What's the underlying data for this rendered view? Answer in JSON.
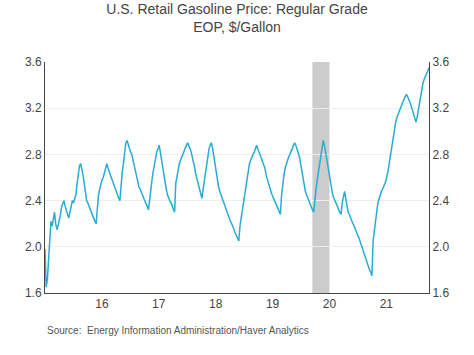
{
  "chart_data": {
    "type": "line",
    "title": "U.S. Retail Gasoline Price: Regular Grade",
    "subtitle": "EOP, $/Gallon",
    "annotations": [
      "Source:  Energy Information Administration/Haver Analytics"
    ],
    "color": "#29ABD4",
    "x": [
      15.0,
      15.0209,
      15.0418,
      15.0627,
      15.0836,
      15.1045,
      15.1254,
      15.1463,
      15.1672,
      15.1881,
      15.209,
      15.2299,
      15.2508,
      15.2717,
      15.2926,
      15.3135,
      15.3344,
      15.3553,
      15.3762,
      15.3971,
      15.418,
      15.4389,
      15.4598,
      15.4807,
      15.5015,
      15.5224,
      15.5433,
      15.5642,
      15.5851,
      15.606,
      15.6269,
      15.6478,
      15.6687,
      15.6896,
      15.7105,
      15.7314,
      15.7523,
      15.7732,
      15.7941,
      15.815,
      15.8359,
      15.8568,
      15.8777,
      15.8986,
      15.9195,
      15.9404,
      15.9613,
      15.9822,
      16.0031,
      16.024,
      16.0449,
      16.0658,
      16.0867,
      16.1076,
      16.1285,
      16.1494,
      16.1703,
      16.1912,
      16.2121,
      16.233,
      16.2539,
      16.2748,
      16.2957,
      16.3166,
      16.3375,
      16.3584,
      16.3793,
      16.4002,
      16.4211,
      16.442,
      16.4628,
      16.4837,
      16.5046,
      16.5255,
      16.5464,
      16.5673,
      16.5882,
      16.6091,
      16.63,
      16.6509,
      16.6718,
      16.6927,
      16.7136,
      16.7345,
      16.7554,
      16.7763,
      16.7972,
      16.8181,
      16.839,
      16.8599,
      16.8808,
      16.9017,
      16.9226,
      16.9435,
      16.9644,
      16.9853,
      17.0062,
      17.0271,
      17.048,
      17.0689,
      17.0898,
      17.1107,
      17.1316,
      17.1525,
      17.1734,
      17.1943,
      17.2152,
      17.2361,
      17.257,
      17.2779,
      17.2988,
      17.3197,
      17.3406,
      17.3615,
      17.3824,
      17.4033,
      17.4241,
      17.445,
      17.4659,
      17.4868,
      17.5077,
      17.5286,
      17.5495,
      17.5704,
      17.5913,
      17.6122,
      17.6331,
      17.654,
      17.6749,
      17.6958,
      17.7167,
      17.7376,
      17.7585,
      17.7794,
      17.8003,
      17.8212,
      17.8421,
      17.863,
      17.8839,
      17.9048,
      17.9257,
      17.9466,
      17.9675,
      17.9884,
      18.0093,
      18.0302,
      18.0511,
      18.072,
      18.0929,
      18.1138,
      18.1347,
      18.1556,
      18.1765,
      18.1974,
      18.2183,
      18.2392,
      18.2601,
      18.281,
      18.3019,
      18.3228,
      18.3437,
      18.3646,
      18.3854,
      18.4063,
      18.4272,
      18.4481,
      18.469,
      18.4899,
      18.5108,
      18.5317,
      18.5526,
      18.5735,
      18.5944,
      18.6153,
      18.6362,
      18.6571,
      18.678,
      18.6989,
      18.7198,
      18.7407,
      18.7616,
      18.7825,
      18.8034,
      18.8243,
      18.8452,
      18.8661,
      18.887,
      18.9079,
      18.9288,
      18.9497,
      18.9706,
      18.9915,
      19.0124,
      19.0333,
      19.0542,
      19.0751,
      19.096,
      19.1169,
      19.1378,
      19.1587,
      19.1796,
      19.2005,
      19.2214,
      19.2423,
      19.2632,
      19.2841,
      19.305,
      19.3259,
      19.3468,
      19.3676,
      19.3885,
      19.4094,
      19.4303,
      19.4512,
      19.4721,
      19.493,
      19.5139,
      19.5348,
      19.5557,
      19.5766,
      19.5975,
      19.6184,
      19.6393,
      19.6602,
      19.6811,
      19.702,
      19.7229,
      19.7438,
      19.7647,
      19.7856,
      19.8065,
      19.8274,
      19.8483,
      19.8692,
      19.8901,
      19.911,
      19.9319,
      19.9528,
      19.9737,
      19.9946,
      20.0155,
      20.0364,
      20.0573,
      20.0782,
      20.0991,
      20.12,
      20.1409,
      20.1618,
      20.1827,
      20.2036,
      20.2245,
      20.2454,
      20.2663,
      20.2872,
      20.308,
      20.3289,
      20.3498,
      20.3707,
      20.3916,
      20.4125,
      20.4334,
      20.4543,
      20.4752,
      20.4961,
      20.517,
      20.5379,
      20.5588,
      20.5797,
      20.6006,
      20.6215,
      20.6424,
      20.6633,
      20.6842,
      20.7051,
      20.726,
      20.7469,
      20.7678,
      20.7887,
      20.8096,
      20.8305,
      20.8514,
      20.8723,
      20.8932,
      20.9141,
      20.935,
      20.9559,
      20.9768,
      20.9977,
      21.0186,
      21.0395,
      21.0604,
      21.0813,
      21.1022,
      21.1231,
      21.144,
      21.1649,
      21.1858,
      21.2067,
      21.2276,
      21.2485,
      21.2693,
      21.2902,
      21.3111,
      21.332,
      21.3529,
      21.3738,
      21.3947,
      21.4156,
      21.4365,
      21.4574,
      21.4783,
      21.4992,
      21.5201,
      21.541,
      21.5619,
      21.5828,
      21.6037,
      21.6246,
      21.6455,
      21.6664,
      21.6873,
      21.7082,
      21.7291,
      21.75
    ],
    "values": [
      1.98,
      1.65,
      1.72,
      1.9,
      2.15,
      2.22,
      2.18,
      2.25,
      2.3,
      2.2,
      2.15,
      2.18,
      2.22,
      2.28,
      2.35,
      2.38,
      2.4,
      2.35,
      2.3,
      2.28,
      2.25,
      2.3,
      2.35,
      2.4,
      2.38,
      2.42,
      2.45,
      2.55,
      2.65,
      2.7,
      2.72,
      2.68,
      2.62,
      2.55,
      2.45,
      2.4,
      2.38,
      2.35,
      2.32,
      2.3,
      2.28,
      2.25,
      2.22,
      2.2,
      2.38,
      2.45,
      2.5,
      2.55,
      2.58,
      2.6,
      2.65,
      2.7,
      2.72,
      2.68,
      2.65,
      2.62,
      2.58,
      2.55,
      2.52,
      2.5,
      2.48,
      2.45,
      2.42,
      2.4,
      2.55,
      2.65,
      2.72,
      2.8,
      2.9,
      2.92,
      2.88,
      2.85,
      2.82,
      2.8,
      2.75,
      2.7,
      2.65,
      2.6,
      2.55,
      2.52,
      2.5,
      2.48,
      2.45,
      2.42,
      2.4,
      2.38,
      2.35,
      2.32,
      2.42,
      2.5,
      2.58,
      2.65,
      2.72,
      2.78,
      2.82,
      2.85,
      2.88,
      2.82,
      2.75,
      2.68,
      2.62,
      2.55,
      2.5,
      2.45,
      2.42,
      2.4,
      2.38,
      2.35,
      2.32,
      2.3,
      2.55,
      2.62,
      2.68,
      2.72,
      2.75,
      2.78,
      2.8,
      2.82,
      2.85,
      2.88,
      2.9,
      2.88,
      2.85,
      2.82,
      2.78,
      2.72,
      2.68,
      2.62,
      2.58,
      2.55,
      2.5,
      2.45,
      2.42,
      2.5,
      2.58,
      2.65,
      2.72,
      2.8,
      2.85,
      2.88,
      2.9,
      2.85,
      2.78,
      2.72,
      2.65,
      2.58,
      2.52,
      2.48,
      2.45,
      2.42,
      2.38,
      2.35,
      2.32,
      2.3,
      2.28,
      2.25,
      2.22,
      2.2,
      2.18,
      2.15,
      2.12,
      2.1,
      2.08,
      2.05,
      2.18,
      2.25,
      2.32,
      2.4,
      2.48,
      2.55,
      2.62,
      2.68,
      2.72,
      2.75,
      2.78,
      2.8,
      2.82,
      2.85,
      2.88,
      2.85,
      2.82,
      2.8,
      2.78,
      2.75,
      2.72,
      2.68,
      2.62,
      2.58,
      2.55,
      2.52,
      2.48,
      2.45,
      2.42,
      2.4,
      2.38,
      2.35,
      2.32,
      2.3,
      2.28,
      2.45,
      2.55,
      2.62,
      2.68,
      2.72,
      2.75,
      2.78,
      2.8,
      2.82,
      2.85,
      2.88,
      2.9,
      2.88,
      2.85,
      2.82,
      2.78,
      2.72,
      2.65,
      2.58,
      2.52,
      2.48,
      2.45,
      2.42,
      2.4,
      2.38,
      2.35,
      2.32,
      2.3,
      2.42,
      2.5,
      2.58,
      2.65,
      2.72,
      2.8,
      2.88,
      2.92,
      2.88,
      2.82,
      2.75,
      2.68,
      2.62,
      2.55,
      2.5,
      2.45,
      2.42,
      2.4,
      2.38,
      2.35,
      2.32,
      2.3,
      2.28,
      2.38,
      2.45,
      2.48,
      2.42,
      2.35,
      2.3,
      2.28,
      2.25,
      2.22,
      2.2,
      2.18,
      2.15,
      2.12,
      2.1,
      2.08,
      2.05,
      2.02,
      1.98,
      1.95,
      1.92,
      1.88,
      1.85,
      1.82,
      1.8,
      1.78,
      1.75,
      2.05,
      2.15,
      2.22,
      2.3,
      2.38,
      2.42,
      2.45,
      2.48,
      2.5,
      2.52,
      2.55,
      2.58,
      2.62,
      2.68,
      2.75,
      2.82,
      2.88,
      2.95,
      3.02,
      3.08,
      3.12,
      3.15,
      3.18,
      3.2,
      3.22,
      3.25,
      3.28,
      3.3,
      3.32,
      3.3,
      3.28,
      3.25,
      3.22,
      3.18,
      3.15,
      3.12,
      3.08,
      3.12,
      3.18,
      3.25,
      3.32,
      3.38,
      3.42,
      3.45,
      3.48,
      3.5,
      3.52,
      3.55
    ],
    "xlim": [
      15.0,
      21.75
    ],
    "xticks": [
      16,
      17,
      18,
      19,
      20,
      21
    ],
    "ylim": [
      1.6,
      3.6
    ],
    "yticks": [
      1.6,
      {
        "value": 2.0,
        "label": "2.0"
      },
      2.4,
      2.8,
      3.2,
      3.6
    ],
    "y2lim": [
      1.6,
      3.6
    ],
    "y2ticks": [
      1.6,
      {
        "value": 2.0,
        "label": "2.0"
      },
      2.4,
      2.8,
      3.2,
      3.6
    ],
    "shaded": {
      "x": [
        19.7,
        20.0
      ],
      "color": "#AAAAAA"
    },
    "grid": "y"
  }
}
